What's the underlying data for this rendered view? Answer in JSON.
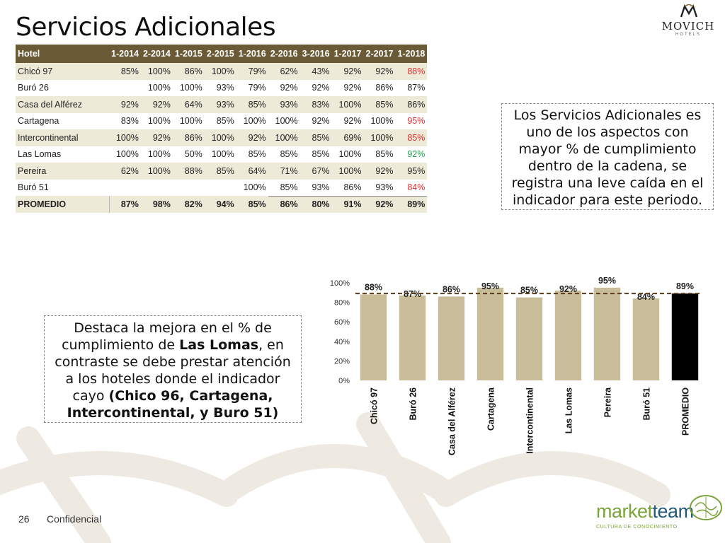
{
  "slide": {
    "title": "Servicios Adicionales",
    "page_number": "26",
    "footer_label": "Confidencial"
  },
  "brand_logo": {
    "name": "MOVICH",
    "sub": "HOTELS"
  },
  "partner_logo": {
    "part1": "market",
    "part2": "team",
    "tagline": "CULTURA DE CONOCIMIENTO"
  },
  "colors": {
    "table_header_bg": "#6a5a36",
    "row_tint": "#eeead8",
    "bar_hotel": "#c8bd98",
    "bar_average": "#000000",
    "avg_line": "#5a3a1a",
    "value_red": "#e03030",
    "value_green": "#22a050"
  },
  "table": {
    "headers": [
      "Hotel",
      "1-2014",
      "2-2014",
      "1-2015",
      "2-2015",
      "1-2016",
      "2-2016",
      "3-2016",
      "1-2017",
      "2-2017",
      "1-2018"
    ],
    "rows": [
      {
        "hotel": "Chicó 97",
        "values": [
          "85%",
          "100%",
          "86%",
          "100%",
          "79%",
          "62%",
          "43%",
          "92%",
          "92%",
          "88%"
        ],
        "last_color": "red"
      },
      {
        "hotel": "Buró 26",
        "values": [
          "",
          "100%",
          "100%",
          "93%",
          "79%",
          "92%",
          "92%",
          "92%",
          "86%",
          "87%"
        ],
        "last_color": ""
      },
      {
        "hotel": "Casa del Alférez",
        "values": [
          "92%",
          "92%",
          "64%",
          "93%",
          "85%",
          "93%",
          "83%",
          "100%",
          "85%",
          "86%"
        ],
        "last_color": ""
      },
      {
        "hotel": "Cartagena",
        "values": [
          "83%",
          "100%",
          "100%",
          "85%",
          "100%",
          "100%",
          "92%",
          "92%",
          "100%",
          "95%"
        ],
        "last_color": "red"
      },
      {
        "hotel": "Intercontinental",
        "values": [
          "100%",
          "92%",
          "86%",
          "100%",
          "92%",
          "100%",
          "85%",
          "69%",
          "100%",
          "85%"
        ],
        "last_color": "red"
      },
      {
        "hotel": "Las Lomas",
        "values": [
          "100%",
          "100%",
          "50%",
          "100%",
          "85%",
          "85%",
          "85%",
          "100%",
          "85%",
          "92%"
        ],
        "last_color": "green"
      },
      {
        "hotel": "Pereira",
        "values": [
          "62%",
          "100%",
          "88%",
          "85%",
          "64%",
          "71%",
          "67%",
          "100%",
          "92%",
          "95%"
        ],
        "last_color": ""
      },
      {
        "hotel": "Buró 51",
        "values": [
          "",
          "",
          "",
          "",
          "100%",
          "85%",
          "93%",
          "86%",
          "93%",
          "84%"
        ],
        "last_color": "red"
      }
    ],
    "average": {
      "hotel": "PROMEDIO",
      "values": [
        "87%",
        "98%",
        "82%",
        "94%",
        "85%",
        "86%",
        "80%",
        "91%",
        "92%",
        "89%"
      ]
    }
  },
  "callouts": {
    "top": "Los Servicios Adicionales es uno de los aspectos con mayor % de cumplimiento dentro de la cadena, se registra una leve caída en el indicador para este periodo.",
    "bottom_parts": [
      {
        "text": "Destaca la mejora en el % de cumplimiento de ",
        "bold": false
      },
      {
        "text": "Las Lomas",
        "bold": true
      },
      {
        "text": ", en contraste se debe prestar atención a los hoteles donde el indicador cayo ",
        "bold": false
      },
      {
        "text": "(Chico 96, Cartagena, Intercontinental, y Buro 51)",
        "bold": true
      }
    ]
  },
  "chart_data": {
    "type": "bar",
    "categories": [
      "Chicó 97",
      "Buró 26",
      "Casa del Alférez",
      "Cartagena",
      "Intercontinental",
      "Las Lomas",
      "Pereira",
      "Buró 51",
      "PROMEDIO"
    ],
    "values": [
      88,
      87,
      86,
      95,
      85,
      92,
      95,
      84,
      89
    ],
    "value_labels": [
      "88%",
      "87%",
      "86%",
      "95%",
      "85%",
      "92%",
      "95%",
      "84%",
      "89%"
    ],
    "highlight_category": "PROMEDIO",
    "reference_line": 89,
    "ylim": [
      0,
      100
    ],
    "yticks": [
      0,
      20,
      40,
      60,
      80,
      100
    ],
    "ytick_labels": [
      "0%",
      "20%",
      "40%",
      "60%",
      "80%",
      "100%"
    ],
    "title": "",
    "xlabel": "",
    "ylabel": "",
    "grid": false,
    "legend": "none"
  }
}
